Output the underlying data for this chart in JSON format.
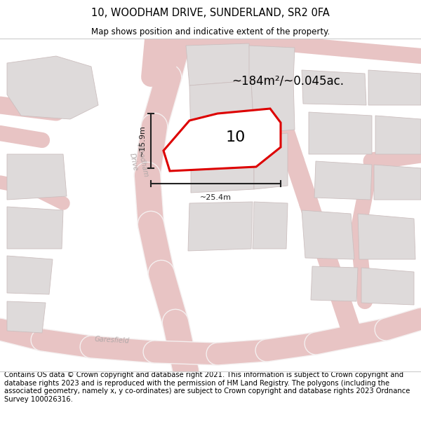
{
  "title": "10, WOODHAM DRIVE, SUNDERLAND, SR2 0FA",
  "subtitle": "Map shows position and indicative extent of the property.",
  "area_label": "~184m²/~0.045ac.",
  "property_number": "10",
  "dim_width": "~25.4m",
  "dim_height": "~15.9m",
  "footer": "Contains OS data © Crown copyright and database right 2021. This information is subject to Crown copyright and database rights 2023 and is reproduced with the permission of HM Land Registry. The polygons (including the associated geometry, namely x, y co-ordinates) are subject to Crown copyright and database rights 2023 Ordnance Survey 100026316.",
  "bg_color": "#f0eded",
  "map_bg": "#f0eded",
  "road_color": "#e8c4c4",
  "road_fill": "#f5f0f0",
  "building_color": "#dedada",
  "building_edge": "#ccbfbf",
  "property_fill": "#ffffff",
  "property_edge": "#dd0000",
  "title_fontsize": 10.5,
  "subtitle_fontsize": 8.5,
  "footer_fontsize": 7.2,
  "street_label_color": "#b0a8a8",
  "dim_color": "#222222"
}
